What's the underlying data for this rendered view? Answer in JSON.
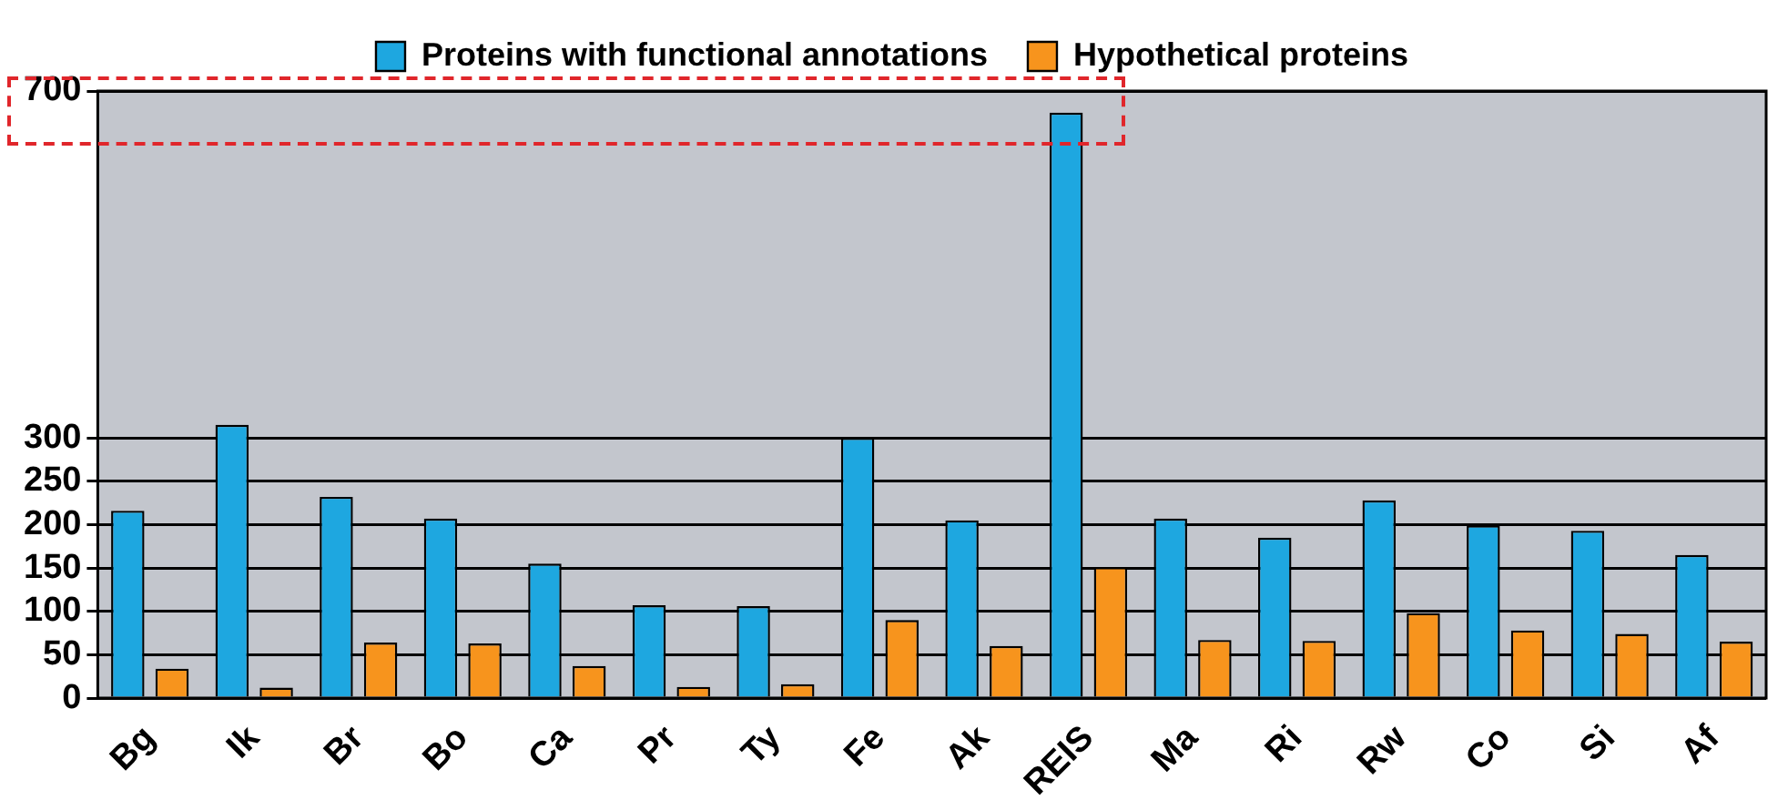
{
  "chart_data": {
    "type": "bar",
    "categories": [
      "Bg",
      "Ik",
      "Br",
      "Bo",
      "Ca",
      "Pr",
      "Ty",
      "Fe",
      "Ak",
      "REIS",
      "Ma",
      "Ri",
      "Rw",
      "Co",
      "Si",
      "Af"
    ],
    "series": [
      {
        "name": "Proteins with functional annotations",
        "color": "#1ea7e0",
        "values": [
          216,
          315,
          232,
          207,
          155,
          107,
          106,
          300,
          205,
          675,
          207,
          185,
          228,
          199,
          193,
          165
        ]
      },
      {
        "name": "Hypothetical proteins",
        "color": "#f7941d",
        "values": [
          34,
          12,
          64,
          63,
          37,
          13,
          16,
          90,
          60,
          151,
          67,
          66,
          98,
          78,
          74,
          65
        ]
      }
    ],
    "ylim": [
      0,
      700
    ],
    "yticks": [
      0,
      50,
      100,
      150,
      200,
      250,
      300,
      700
    ],
    "grid": "y",
    "legend": "top"
  }
}
